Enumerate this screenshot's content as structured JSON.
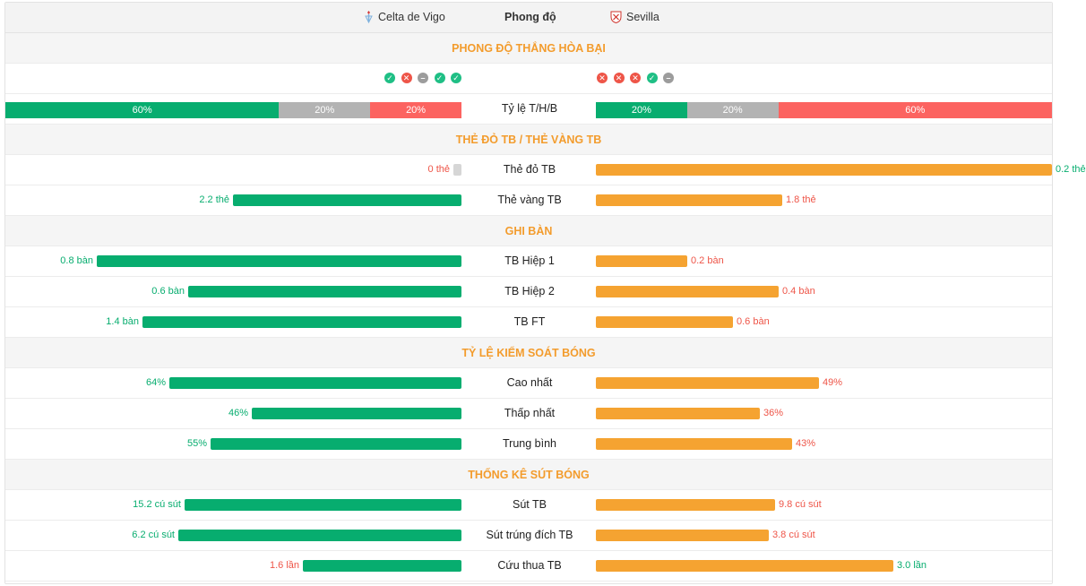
{
  "header": {
    "home_team": "Celta de Vigo",
    "away_team": "Sevilla",
    "title": "Phong độ"
  },
  "sections": {
    "form": "PHONG ĐỘ THẮNG HÒA BẠI",
    "cards": "THẺ ĐỎ TB / THẺ VÀNG TB",
    "goals": "GHI BÀN",
    "possession": "TỶ LỆ KIỂM SOÁT BÓNG",
    "shots": "THỐNG KÊ SÚT BÓNG"
  },
  "form": {
    "home": [
      "w",
      "l",
      "d",
      "w",
      "w"
    ],
    "away": [
      "l",
      "l",
      "l",
      "w",
      "d"
    ],
    "label": "Tỷ lệ T/H/B",
    "home_ratio": [
      {
        "type": "w",
        "pct": 60,
        "label": "60%"
      },
      {
        "type": "d",
        "pct": 20,
        "label": "20%"
      },
      {
        "type": "l",
        "pct": 20,
        "label": "20%"
      }
    ],
    "away_ratio": [
      {
        "type": "w",
        "pct": 20,
        "label": "20%"
      },
      {
        "type": "d",
        "pct": 20,
        "label": "20%"
      },
      {
        "type": "l",
        "pct": 60,
        "label": "60%"
      }
    ]
  },
  "rows": {
    "red_cards": {
      "label": "Thẻ đỏ TB",
      "home_value": 0,
      "away_value": 0.2,
      "max": 0.2,
      "home_text": "0 thẻ",
      "away_text": "0.2 thẻ",
      "home_color": "red",
      "away_color": "green"
    },
    "yellow_cards": {
      "label": "Thẻ vàng TB",
      "home_value": 2.2,
      "away_value": 1.8,
      "max": 4.4,
      "home_text": "2.2 thẻ",
      "away_text": "1.8 thẻ",
      "home_color": "green",
      "away_color": "red"
    },
    "goals_h1": {
      "label": "TB Hiệp 1",
      "home_value": 0.8,
      "away_value": 0.2,
      "max": 1.0,
      "home_text": "0.8 bàn",
      "away_text": "0.2 bàn",
      "home_color": "green",
      "away_color": "red"
    },
    "goals_h2": {
      "label": "TB Hiệp 2",
      "home_value": 0.6,
      "away_value": 0.4,
      "max": 1.0,
      "home_text": "0.6 bàn",
      "away_text": "0.4 bàn",
      "home_color": "green",
      "away_color": "red"
    },
    "goals_ft": {
      "label": "TB FT",
      "home_value": 1.4,
      "away_value": 0.6,
      "max": 2.0,
      "home_text": "1.4 bàn",
      "away_text": "0.6 bàn",
      "home_color": "green",
      "away_color": "red"
    },
    "poss_high": {
      "label": "Cao nhất",
      "home_value": 64,
      "away_value": 49,
      "max": 100,
      "home_text": "64%",
      "away_text": "49%",
      "home_color": "green",
      "away_color": "red"
    },
    "poss_low": {
      "label": "Thấp nhất",
      "home_value": 46,
      "away_value": 36,
      "max": 100,
      "home_text": "46%",
      "away_text": "36%",
      "home_color": "green",
      "away_color": "red"
    },
    "poss_avg": {
      "label": "Trung bình",
      "home_value": 55,
      "away_value": 43,
      "max": 100,
      "home_text": "55%",
      "away_text": "43%",
      "home_color": "green",
      "away_color": "red"
    },
    "shots": {
      "label": "Sút TB",
      "home_value": 15.2,
      "away_value": 9.8,
      "max": 25,
      "home_text": "15.2 cú sút",
      "away_text": "9.8 cú sút",
      "home_color": "green",
      "away_color": "red"
    },
    "shots_on": {
      "label": "Sút trúng đích TB",
      "home_value": 6.2,
      "away_value": 3.8,
      "max": 10,
      "home_text": "6.2 cú sút",
      "away_text": "3.8 cú sút",
      "home_color": "green",
      "away_color": "red"
    },
    "saves": {
      "label": "Cứu thua TB",
      "home_value": 1.6,
      "away_value": 3.0,
      "max": 4.6,
      "home_text": "1.6 lần",
      "away_text": "3.0 lần",
      "home_color": "red",
      "away_color": "green"
    }
  }
}
